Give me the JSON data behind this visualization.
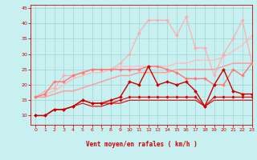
{
  "bg_color": "#c8f0f0",
  "grid_color": "#9fd4d4",
  "xlabel": "Vent moyen/en rafales ( km/h )",
  "xlim": [
    -0.5,
    23
  ],
  "ylim": [
    7,
    46
  ],
  "yticks": [
    10,
    15,
    20,
    25,
    30,
    35,
    40,
    45
  ],
  "ytick_labels": [
    "10",
    "15",
    "20",
    "25",
    "30",
    "35",
    "40",
    "45"
  ],
  "xticks": [
    0,
    1,
    2,
    3,
    4,
    5,
    6,
    7,
    8,
    9,
    10,
    11,
    12,
    13,
    14,
    15,
    16,
    17,
    18,
    19,
    20,
    21,
    22,
    23
  ],
  "lines": [
    {
      "x": [
        0,
        1,
        2,
        3,
        4,
        5,
        6,
        7,
        8,
        9,
        10,
        11,
        12,
        13,
        14,
        15,
        16,
        17,
        18,
        19,
        20,
        21,
        22,
        23
      ],
      "y": [
        10,
        10,
        12,
        12,
        13,
        14,
        13,
        13,
        14,
        14,
        15,
        15,
        15,
        15,
        15,
        15,
        15,
        15,
        13,
        15,
        15,
        15,
        15,
        15
      ],
      "color": "#dd0000",
      "lw": 0.8,
      "marker": null,
      "ms": 0,
      "zorder": 4
    },
    {
      "x": [
        0,
        1,
        2,
        3,
        4,
        5,
        6,
        7,
        8,
        9,
        10,
        11,
        12,
        13,
        14,
        15,
        16,
        17,
        18,
        19,
        20,
        21,
        22,
        23
      ],
      "y": [
        10,
        10,
        12,
        12,
        13,
        15,
        14,
        14,
        14,
        15,
        16,
        16,
        16,
        16,
        16,
        16,
        16,
        16,
        13,
        16,
        16,
        16,
        16,
        16
      ],
      "color": "#dd0000",
      "lw": 0.8,
      "marker": "D",
      "ms": 1.8,
      "zorder": 4
    },
    {
      "x": [
        0,
        1,
        2,
        3,
        4,
        5,
        6,
        7,
        8,
        9,
        10,
        11,
        12,
        13,
        14,
        15,
        16,
        17,
        18,
        19,
        20,
        21,
        22,
        23
      ],
      "y": [
        10,
        10,
        12,
        12,
        13,
        15,
        14,
        14,
        15,
        16,
        21,
        20,
        26,
        20,
        21,
        20,
        21,
        18,
        13,
        20,
        25,
        18,
        17,
        17
      ],
      "color": "#cc0000",
      "lw": 1.0,
      "marker": "D",
      "ms": 2.0,
      "zorder": 5
    },
    {
      "x": [
        0,
        1,
        2,
        3,
        4,
        5,
        6,
        7,
        8,
        9,
        10,
        11,
        12,
        13,
        14,
        15,
        16,
        17,
        18,
        19,
        20,
        21,
        22,
        23
      ],
      "y": [
        16,
        16,
        17,
        18,
        18,
        19,
        20,
        21,
        22,
        23,
        23,
        24,
        24,
        24,
        24,
        25,
        25,
        25,
        25,
        25,
        26,
        27,
        27,
        27
      ],
      "color": "#ff9999",
      "lw": 1.0,
      "marker": null,
      "ms": 0,
      "zorder": 2
    },
    {
      "x": [
        0,
        1,
        2,
        3,
        4,
        5,
        6,
        7,
        8,
        9,
        10,
        11,
        12,
        13,
        14,
        15,
        16,
        17,
        18,
        19,
        20,
        21,
        22,
        23
      ],
      "y": [
        16,
        17,
        21,
        21,
        23,
        24,
        25,
        25,
        25,
        25,
        25,
        25,
        26,
        26,
        25,
        24,
        22,
        22,
        22,
        20,
        20,
        25,
        23,
        27
      ],
      "color": "#ff7777",
      "lw": 1.0,
      "marker": "D",
      "ms": 2.0,
      "zorder": 3
    },
    {
      "x": [
        0,
        1,
        2,
        3,
        4,
        5,
        6,
        7,
        8,
        9,
        10,
        11,
        12,
        13,
        14,
        15,
        16,
        17,
        18,
        19,
        20,
        21,
        22,
        23
      ],
      "y": [
        16,
        17,
        18,
        20,
        22,
        23,
        24,
        24,
        25,
        26,
        26,
        26,
        26,
        26,
        26,
        27,
        27,
        28,
        28,
        28,
        29,
        31,
        33,
        36
      ],
      "color": "#ffbbbb",
      "lw": 1.0,
      "marker": null,
      "ms": 0,
      "zorder": 2
    },
    {
      "x": [
        0,
        1,
        2,
        3,
        4,
        5,
        6,
        7,
        8,
        9,
        10,
        11,
        12,
        13,
        14,
        15,
        16,
        17,
        18,
        19,
        20,
        21,
        22,
        23
      ],
      "y": [
        16,
        18,
        19,
        23,
        23,
        24,
        25,
        25,
        25,
        27,
        30,
        37,
        41,
        41,
        41,
        36,
        42,
        32,
        32,
        23,
        30,
        35,
        41,
        27
      ],
      "color": "#ffaaaa",
      "lw": 0.8,
      "marker": "D",
      "ms": 2.0,
      "zorder": 2
    }
  ],
  "wind_arrows_x": [
    0,
    1,
    2,
    3,
    4,
    5,
    6,
    7,
    8,
    9,
    10,
    11,
    12,
    13,
    14,
    15,
    16,
    17,
    18,
    19,
    20,
    21,
    22,
    23
  ],
  "wind_arrows_angle": [
    225,
    225,
    225,
    225,
    225,
    225,
    225,
    225,
    225,
    225,
    225,
    225,
    225,
    225,
    225,
    225,
    225,
    225,
    225,
    225,
    270,
    315,
    315,
    315
  ]
}
